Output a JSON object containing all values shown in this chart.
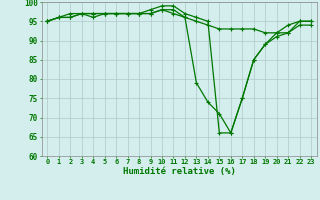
{
  "line1": {
    "x": [
      0,
      1,
      2,
      3,
      4,
      5,
      6,
      7,
      8,
      9,
      10,
      11,
      12,
      13,
      14,
      15,
      16,
      17,
      18,
      19,
      20,
      21,
      22,
      23
    ],
    "y": [
      95,
      96,
      96,
      97,
      96,
      97,
      97,
      97,
      97,
      97,
      98,
      98,
      96,
      95,
      94,
      93,
      93,
      93,
      93,
      92,
      92,
      94,
      95,
      95
    ],
    "color": "#007700",
    "linewidth": 0.9,
    "marker": "+",
    "markersize": 3,
    "markeredgewidth": 0.8
  },
  "line2": {
    "x": [
      0,
      1,
      2,
      3,
      4,
      5,
      6,
      7,
      8,
      9,
      10,
      11,
      12,
      13,
      14,
      15,
      16,
      17,
      18,
      19,
      20,
      21,
      22,
      23
    ],
    "y": [
      95,
      96,
      97,
      97,
      97,
      97,
      97,
      97,
      97,
      98,
      99,
      99,
      97,
      96,
      95,
      66,
      66,
      75,
      85,
      89,
      91,
      92,
      94,
      94
    ],
    "color": "#007700",
    "linewidth": 0.9,
    "marker": "+",
    "markersize": 3,
    "markeredgewidth": 0.8
  },
  "line3": {
    "x": [
      0,
      1,
      2,
      3,
      4,
      5,
      6,
      7,
      8,
      9,
      10,
      11,
      12,
      13,
      14,
      15,
      16,
      17,
      18,
      19,
      20,
      21,
      22,
      23
    ],
    "y": [
      95,
      96,
      96,
      97,
      97,
      97,
      97,
      97,
      97,
      97,
      98,
      97,
      96,
      79,
      74,
      71,
      66,
      75,
      85,
      89,
      92,
      92,
      95,
      95
    ],
    "color": "#007700",
    "linewidth": 0.9,
    "marker": "+",
    "markersize": 3,
    "markeredgewidth": 0.8
  },
  "xlabel": "Humidité relative (%)",
  "xlabel_color": "#007700",
  "xlabel_fontsize": 6.5,
  "background_color": "#d4eeed",
  "grid_color": "#b0c8c8",
  "tick_color": "#007700",
  "tick_fontsize": 5.0,
  "ytick_fontsize": 5.5,
  "ylim": [
    60,
    100
  ],
  "xlim": [
    -0.5,
    23.5
  ],
  "yticks": [
    60,
    65,
    70,
    75,
    80,
    85,
    90,
    95,
    100
  ],
  "xticks": [
    0,
    1,
    2,
    3,
    4,
    5,
    6,
    7,
    8,
    9,
    10,
    11,
    12,
    13,
    14,
    15,
    16,
    17,
    18,
    19,
    20,
    21,
    22,
    23
  ]
}
